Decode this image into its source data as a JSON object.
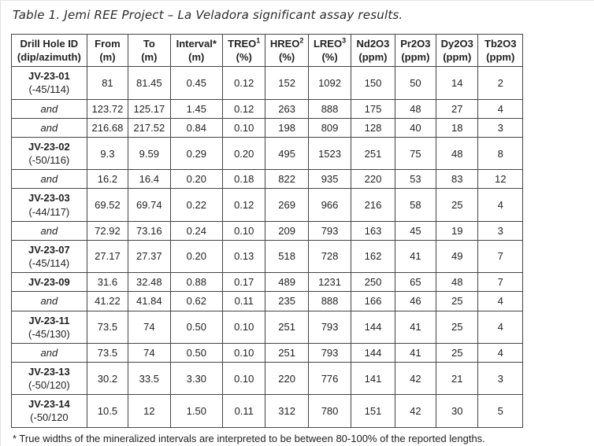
{
  "page": {
    "title": "Table 1. Jemi REE Project – La Veladora significant assay results.",
    "footnote": "* True widths of the mineralized intervals are interpreted to be between 80-100% of the reported lengths."
  },
  "table": {
    "headers": [
      {
        "line1": "Drill Hole ID",
        "sup": "",
        "line2": "(dip/azimuth)"
      },
      {
        "line1": "From",
        "sup": "",
        "line2": "(m)"
      },
      {
        "line1": "To",
        "sup": "",
        "line2": "(m)"
      },
      {
        "line1": "Interval*",
        "sup": "",
        "line2": "(m)"
      },
      {
        "line1": "TREO",
        "sup": "1",
        "line2": "(%)"
      },
      {
        "line1": "HREO",
        "sup": "2",
        "line2": "(%)"
      },
      {
        "line1": "LREO",
        "sup": "3",
        "line2": "(%)"
      },
      {
        "line1": "Nd2O3",
        "sup": "",
        "line2": "(ppm)"
      },
      {
        "line1": "Pr2O3",
        "sup": "",
        "line2": "(ppm)"
      },
      {
        "line1": "Dy2O3",
        "sup": "",
        "line2": "(ppm)"
      },
      {
        "line1": "Tb2O3",
        "sup": "",
        "line2": "(ppm)"
      }
    ],
    "rows": [
      {
        "style": "hole",
        "hole": "JV-23-01",
        "dip": "(-45/114)",
        "values": [
          "81",
          "81.45",
          "0.45",
          "0.12",
          "152",
          "1092",
          "150",
          "50",
          "14",
          "2"
        ]
      },
      {
        "style": "and",
        "hole": "and",
        "dip": "",
        "values": [
          "123.72",
          "125.17",
          "1.45",
          "0.12",
          "263",
          "888",
          "175",
          "48",
          "27",
          "4"
        ]
      },
      {
        "style": "and",
        "hole": "and",
        "dip": "",
        "values": [
          "216.68",
          "217.52",
          "0.84",
          "0.10",
          "198",
          "809",
          "128",
          "40",
          "18",
          "3"
        ]
      },
      {
        "style": "hole",
        "hole": "JV-23-02",
        "dip": "(-50/116)",
        "values": [
          "9.3",
          "9.59",
          "0.29",
          "0.20",
          "495",
          "1523",
          "251",
          "75",
          "48",
          "8"
        ]
      },
      {
        "style": "and",
        "hole": "and",
        "dip": "",
        "values": [
          "16.2",
          "16.4",
          "0.20",
          "0.18",
          "822",
          "935",
          "220",
          "53",
          "83",
          "12"
        ]
      },
      {
        "style": "hole",
        "hole": "JV-23-03",
        "dip": "(-44/117)",
        "values": [
          "69.52",
          "69.74",
          "0.22",
          "0.12",
          "269",
          "966",
          "216",
          "58",
          "25",
          "4"
        ]
      },
      {
        "style": "and",
        "hole": "and",
        "dip": "",
        "values": [
          "72.92",
          "73.16",
          "0.24",
          "0.10",
          "209",
          "793",
          "163",
          "45",
          "19",
          "3"
        ]
      },
      {
        "style": "hole",
        "hole": "JV-23-07",
        "dip": "(-45/114)",
        "values": [
          "27.17",
          "27.37",
          "0.20",
          "0.13",
          "518",
          "728",
          "162",
          "41",
          "49",
          "7"
        ]
      },
      {
        "style": "hole",
        "hole": "JV-23-09",
        "dip": "",
        "values": [
          "31.6",
          "32.48",
          "0.88",
          "0.17",
          "489",
          "1231",
          "250",
          "65",
          "48",
          "7"
        ]
      },
      {
        "style": "and",
        "hole": "and",
        "dip": "",
        "values": [
          "41.22",
          "41.84",
          "0.62",
          "0.11",
          "235",
          "888",
          "166",
          "46",
          "25",
          "4"
        ]
      },
      {
        "style": "hole",
        "hole": "JV-23-11",
        "dip": "(-45/130)",
        "values": [
          "73.5",
          "74",
          "0.50",
          "0.10",
          "251",
          "793",
          "144",
          "41",
          "25",
          "4"
        ]
      },
      {
        "style": "and",
        "hole": "and",
        "dip": "",
        "values": [
          "73.5",
          "74",
          "0.50",
          "0.10",
          "251",
          "793",
          "144",
          "41",
          "25",
          "4"
        ]
      },
      {
        "style": "hole",
        "hole": "JV-23-13",
        "dip": "(-50/120)",
        "values": [
          "30.2",
          "33.5",
          "3.30",
          "0.10",
          "220",
          "776",
          "141",
          "42",
          "21",
          "3"
        ]
      },
      {
        "style": "hole",
        "hole": "JV-23-14",
        "dip": "(-50/120",
        "values": [
          "10.5",
          "12",
          "1.50",
          "0.11",
          "312",
          "780",
          "151",
          "42",
          "30",
          "5"
        ]
      }
    ]
  }
}
